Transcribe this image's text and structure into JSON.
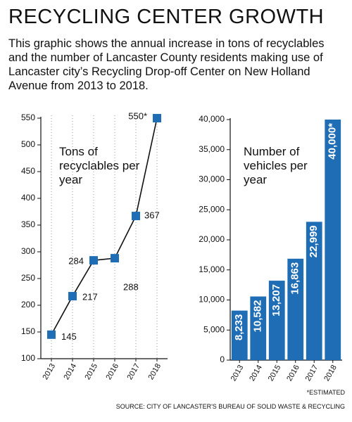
{
  "header": {
    "title": "RECYCLING CENTER GROWTH",
    "description": "This graphic shows the annual increase in tons of recyclables and the number of Lancaster County residents making use of Lancaster city’s Recycling Drop-off Center on New Holland Avenue from 2013 to 2018."
  },
  "chart_data": [
    {
      "type": "line",
      "annotation": "Tons of recyclables per year",
      "categories": [
        "2013",
        "2014",
        "2015",
        "2016",
        "2017",
        "2018"
      ],
      "values": [
        145,
        217,
        284,
        288,
        367,
        550
      ],
      "value_labels": [
        "145",
        "217",
        "284",
        "288",
        "367",
        "550*"
      ],
      "color": "#1f6db5",
      "ylim": [
        100,
        550
      ],
      "yticks": [
        100,
        150,
        200,
        250,
        300,
        350,
        400,
        450,
        500,
        550
      ]
    },
    {
      "type": "bar",
      "annotation": "Number of vehicles per year",
      "categories": [
        "2013",
        "2014",
        "2015",
        "2016",
        "2017",
        "2018"
      ],
      "values": [
        8233,
        10582,
        13207,
        16863,
        22999,
        40000
      ],
      "value_labels": [
        "8,233",
        "10,582",
        "13,207",
        "16,863",
        "22,999",
        "40,000*"
      ],
      "color": "#1f6db5",
      "ylim": [
        0,
        40000
      ],
      "yticks": [
        0,
        {
          "value": 5000,
          "label": "5,000"
        },
        {
          "value": 10000,
          "label": "10,000"
        },
        {
          "value": 15000,
          "label": "15,000"
        },
        {
          "value": 20000,
          "label": "20,000"
        },
        {
          "value": 25000,
          "label": "25,000"
        },
        {
          "value": 30000,
          "label": "30,000"
        },
        {
          "value": 35000,
          "label": "35,000"
        },
        {
          "value": 40000,
          "label": "40,000"
        }
      ]
    }
  ],
  "footnote": "*ESTIMATED",
  "source": "SOURCE: CITY OF LANCASTER'S BUREAU OF SOLID WASTE & RECYCLING"
}
